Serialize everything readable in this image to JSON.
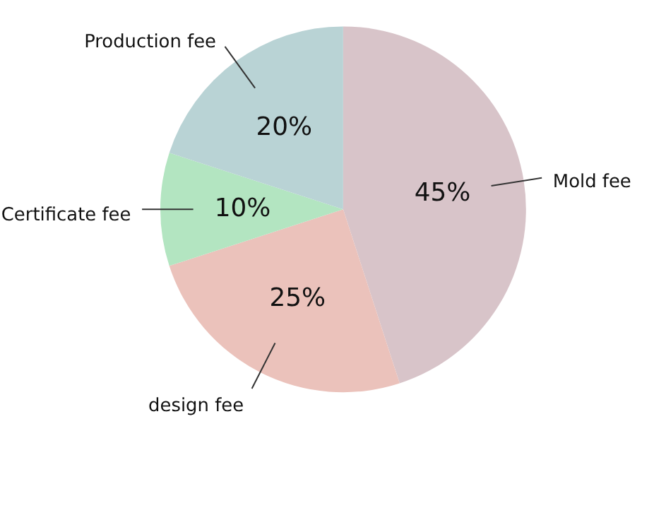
{
  "chart_data": {
    "type": "pie",
    "categories": [
      "Mold fee",
      "design fee",
      "Certificate fee",
      "Production fee"
    ],
    "values": [
      45,
      25,
      10,
      20
    ],
    "value_labels": [
      "45%",
      "25%",
      "10%",
      "20%"
    ],
    "colors": [
      "#d8c4c9",
      "#ebc2bb",
      "#b3e5c1",
      "#b9d3d5"
    ],
    "legend": false
  }
}
